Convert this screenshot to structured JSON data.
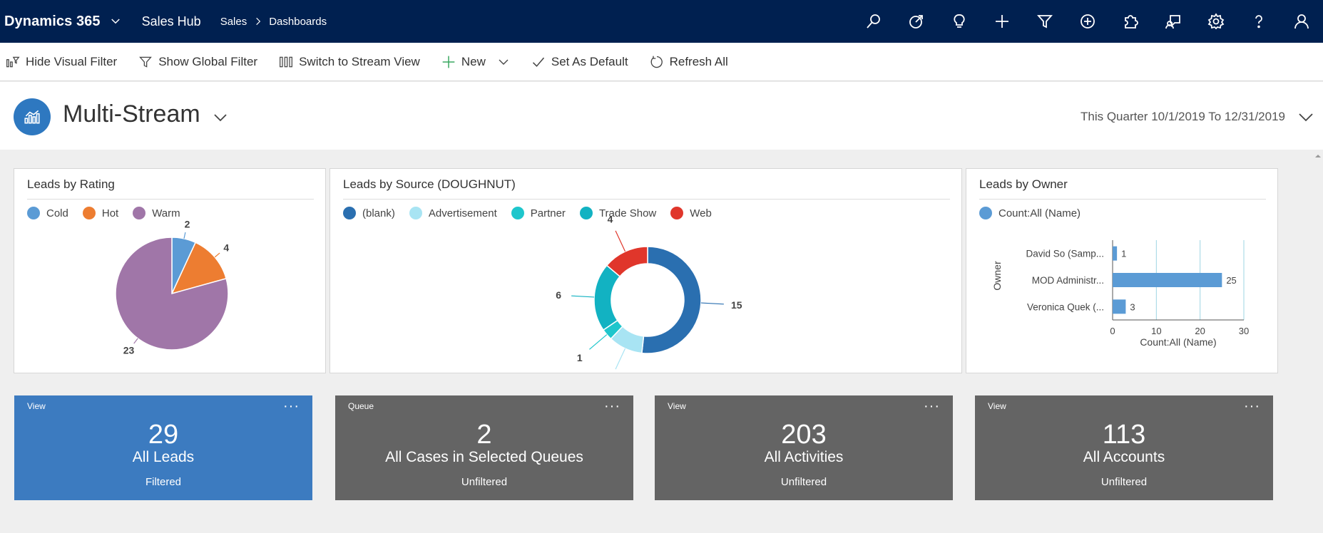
{
  "nav": {
    "brand": "Dynamics 365",
    "app": "Sales Hub",
    "breadcrumb": [
      "Sales",
      "Dashboards"
    ],
    "icons": [
      "search-icon",
      "recent-icon",
      "lightbulb-icon",
      "add-icon",
      "filter-icon",
      "circle-add-icon",
      "puzzle-icon",
      "assistant-icon",
      "gear-icon",
      "help-icon",
      "user-icon"
    ]
  },
  "commands": {
    "hide_visual_filter": "Hide Visual Filter",
    "show_global_filter": "Show Global Filter",
    "switch_stream": "Switch to Stream View",
    "new": "New",
    "set_default": "Set As Default",
    "refresh": "Refresh All"
  },
  "header": {
    "title": "Multi-Stream",
    "period": "This Quarter 10/1/2019 To 12/31/2019"
  },
  "colors": {
    "navbar": "#002050",
    "accent": "#2e78c0",
    "tile_blue": "#3c7bc0",
    "tile_gray": "#646464"
  },
  "chart_data": [
    {
      "type": "pie",
      "title": "Leads by Rating",
      "legend": "top",
      "slices": [
        {
          "label": "Cold",
          "value": 2,
          "color": "#5b9bd5"
        },
        {
          "label": "Hot",
          "value": 4,
          "color": "#ed7d31"
        },
        {
          "label": "Warm",
          "value": 23,
          "color": "#a076a8"
        }
      ]
    },
    {
      "type": "pie",
      "title": "Leads by Source (DOUGHNUT)",
      "legend": "top",
      "doughnut": true,
      "slices": [
        {
          "label": "(blank)",
          "value": 15,
          "color": "#2a6fb0"
        },
        {
          "label": "Advertisement",
          "value": 3,
          "color": "#a8e4f3"
        },
        {
          "label": "Partner",
          "value": 1,
          "color": "#1ec6cc"
        },
        {
          "label": "Trade Show",
          "value": 6,
          "color": "#12b2c2"
        },
        {
          "label": "Web",
          "value": 4,
          "color": "#e0362b"
        }
      ]
    },
    {
      "type": "bar",
      "orientation": "horizontal",
      "title": "Leads by Owner",
      "legend": "top",
      "series": [
        {
          "name": "Count:All (Name)",
          "color": "#5b9bd5",
          "values": [
            1,
            25,
            3
          ]
        }
      ],
      "categories": [
        "David So (Samp...",
        "MOD Administr...",
        "Veronica Quek (..."
      ],
      "xlabel": "Count:All (Name)",
      "ylabel": "Owner",
      "xlim": [
        0,
        30
      ],
      "xticks": [
        0,
        10,
        20,
        30
      ],
      "grid": true
    }
  ],
  "tiles": [
    {
      "kind": "View",
      "count": "29",
      "name": "All Leads",
      "status": "Filtered",
      "color": "#3c7bc0"
    },
    {
      "kind": "Queue",
      "count": "2",
      "name": "All Cases in Selected Queues",
      "status": "Unfiltered",
      "color": "#646464"
    },
    {
      "kind": "View",
      "count": "203",
      "name": "All Activities",
      "status": "Unfiltered",
      "color": "#646464"
    },
    {
      "kind": "View",
      "count": "113",
      "name": "All Accounts",
      "status": "Unfiltered",
      "color": "#646464"
    }
  ],
  "tile_more": "···"
}
